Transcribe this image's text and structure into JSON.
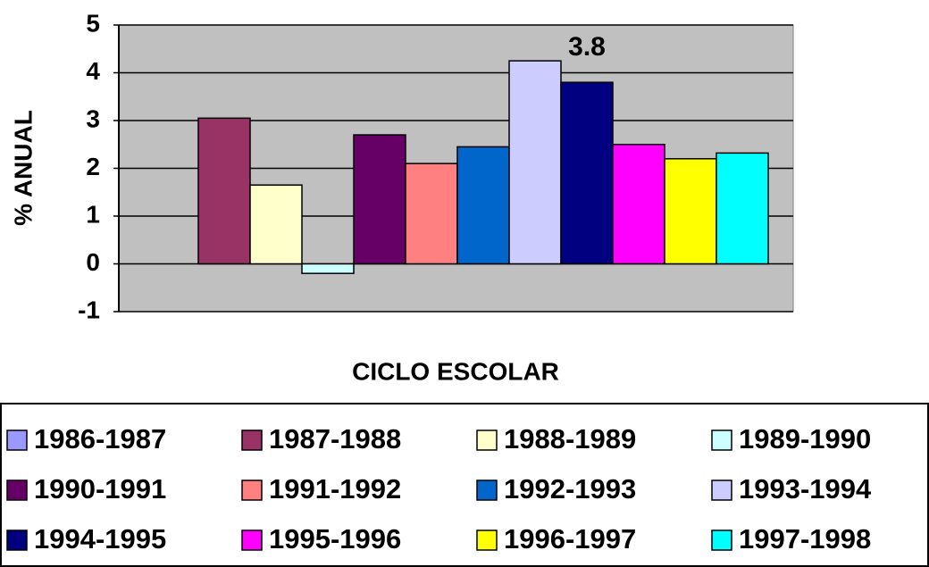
{
  "chart_data": {
    "type": "bar",
    "xlabel": "CICLO ESCOLAR",
    "ylabel": "% ANUAL",
    "ylim": [
      -1,
      5
    ],
    "yticks": [
      -1,
      0,
      1,
      2,
      3,
      4,
      5
    ],
    "grid": true,
    "legend": "bottom",
    "series": [
      {
        "name": "1986-1987",
        "color": "#9999ff",
        "values": [
          null
        ]
      },
      {
        "name": "1987-1988",
        "color": "#993366",
        "values": [
          3.05
        ]
      },
      {
        "name": "1988-1989",
        "color": "#ffffcc",
        "values": [
          1.65
        ]
      },
      {
        "name": "1989-1990",
        "color": "#ccffff",
        "values": [
          -0.2
        ]
      },
      {
        "name": "1990-1991",
        "color": "#660066",
        "values": [
          2.7
        ]
      },
      {
        "name": "1991-1992",
        "color": "#ff8080",
        "values": [
          2.1
        ]
      },
      {
        "name": "1992-1993",
        "color": "#0066cc",
        "values": [
          2.45
        ]
      },
      {
        "name": "1993-1994",
        "color": "#ccccff",
        "values": [
          4.25
        ]
      },
      {
        "name": "1994-1995",
        "color": "#000080",
        "values": [
          3.8
        ],
        "data_labels": true
      },
      {
        "name": "1995-1996",
        "color": "#ff00ff",
        "values": [
          2.5
        ]
      },
      {
        "name": "1996-1997",
        "color": "#ffff00",
        "values": [
          2.2
        ]
      },
      {
        "name": "1997-1998",
        "color": "#00ffff",
        "values": [
          2.32
        ]
      }
    ]
  }
}
